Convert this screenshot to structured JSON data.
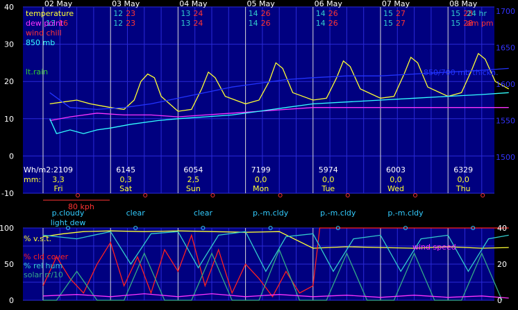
{
  "colors": {
    "background": "#000000",
    "plot_fill": "#000080",
    "grid": "#2a2ad8",
    "day_line": "#d8d8d8",
    "temperature": "#ffff33",
    "dew_point": "#ff33ff",
    "wind_chill": "#ff3333",
    "mb850": "#33ffff",
    "thickness": "#2233ff",
    "rain": "#33cc33",
    "hi_lo_teal": "#33cccc",
    "hi_lo_red": "#ff3333",
    "axis_text": "#ffffff",
    "right_axis_text": "#3333ff",
    "cloud": "#ff2020",
    "vst": "#ffff33",
    "rh": "#33cccc",
    "solar": "#33aa88",
    "wind_speed": "#ff33ff",
    "sky_text": "#33ccff",
    "wind_scale": "#ff3333"
  },
  "days": [
    {
      "date": "02 May",
      "weekday": "Fri",
      "hi_am": "",
      "hi_pm": "",
      "lo_am": "13",
      "lo_pm": "16",
      "solar": "Wh/m2:2109",
      "rain": "3,3",
      "sky": "p.cloudy",
      "sky2": "light dew"
    },
    {
      "date": "03 May",
      "weekday": "Sat",
      "hi_am": "12",
      "hi_pm": "23",
      "lo_am": "12",
      "lo_pm": "23",
      "solar": "6145",
      "rain": "0,3",
      "sky": "clear",
      "sky2": ""
    },
    {
      "date": "04 May",
      "weekday": "Sun",
      "hi_am": "13",
      "hi_pm": "24",
      "lo_am": "13",
      "lo_pm": "24",
      "solar": "6054",
      "rain": "2,5",
      "sky": "clear",
      "sky2": ""
    },
    {
      "date": "05 May",
      "weekday": "Mon",
      "hi_am": "14",
      "hi_pm": "26",
      "lo_am": "14",
      "lo_pm": "26",
      "solar": "7199",
      "rain": "0,0",
      "sky": "p.-m.cldy",
      "sky2": ""
    },
    {
      "date": "06 May",
      "weekday": "Tue",
      "hi_am": "14",
      "hi_pm": "26",
      "lo_am": "14",
      "lo_pm": "26",
      "solar": "5974",
      "rain": "0,0",
      "sky": "p.-m.cldy",
      "sky2": ""
    },
    {
      "date": "07 May",
      "weekday": "Wed",
      "hi_am": "15",
      "hi_pm": "27",
      "lo_am": "15",
      "lo_pm": "27",
      "solar": "6003",
      "rain": "0,0",
      "sky": "p.-m.cldy",
      "sky2": ""
    },
    {
      "date": "08 May",
      "weekday": "Thu",
      "hi_am": "15",
      "hi_pm": "28",
      "lo_am": "15",
      "lo_pm": "28",
      "solar": "6329",
      "rain": "0,0",
      "sky": "",
      "sky2": ""
    }
  ],
  "unit_labels": {
    "hr": "24 hr",
    "ampm": "am pm",
    "mm": "mm:",
    "wind_scale": "80 kph"
  },
  "chart_data": [
    {
      "type": "line",
      "series": [
        {
          "name": "temperature",
          "color": "#ffff33",
          "x": [
            0.1,
            0.3,
            0.5,
            0.7,
            1.0,
            1.2,
            1.35,
            1.45,
            1.55,
            1.65,
            1.75,
            2.0,
            2.2,
            2.35,
            2.45,
            2.55,
            2.7,
            3.0,
            3.2,
            3.35,
            3.45,
            3.55,
            3.7,
            4.0,
            4.2,
            4.35,
            4.45,
            4.55,
            4.7,
            5.0,
            5.2,
            5.35,
            5.45,
            5.55,
            5.7,
            6.0,
            6.2,
            6.35,
            6.45,
            6.55,
            6.7,
            6.9
          ],
          "y": [
            14,
            14.5,
            15,
            14,
            13,
            12.5,
            15,
            20,
            22,
            21,
            16,
            12,
            12.5,
            18,
            22.5,
            21,
            16,
            14,
            15,
            20,
            25,
            23.5,
            17,
            15,
            15.5,
            21,
            25.5,
            24,
            18,
            15.5,
            16,
            22,
            26.5,
            25,
            18.5,
            16,
            17,
            23,
            27.5,
            26,
            20,
            18
          ]
        },
        {
          "name": "dew point",
          "color": "#ff33ff",
          "x": [
            0.1,
            0.4,
            0.8,
            1.2,
            1.6,
            2.0,
            2.4,
            2.8,
            3.2,
            3.6,
            4.0,
            4.5,
            5.0,
            5.5,
            6.0,
            6.5,
            6.9
          ],
          "y": [
            9.5,
            10.5,
            11.5,
            11,
            11,
            10.5,
            11,
            11.5,
            12,
            12.5,
            13,
            13,
            13,
            13,
            13,
            13,
            13
          ]
        },
        {
          "name": "850 mb",
          "color": "#33ffff",
          "x": [
            0.1,
            0.2,
            0.4,
            0.6,
            0.8,
            1.0,
            1.3,
            1.7,
            2.0,
            2.4,
            2.8,
            3.2,
            3.6,
            4.0,
            4.5,
            5.0,
            5.5,
            6.0,
            6.5,
            6.9
          ],
          "y": [
            10,
            6,
            7,
            6,
            7,
            7.5,
            8.5,
            9.5,
            10,
            10.5,
            11,
            12,
            13,
            14,
            14.5,
            15,
            15.5,
            16,
            16.5,
            17
          ]
        },
        {
          "name": "850/700 mb thickn.",
          "color": "#2233ff",
          "x": [
            0.1,
            0.4,
            0.8,
            1.2,
            1.6,
            2.0,
            2.4,
            2.8,
            3.2,
            3.6,
            4.0,
            4.5,
            5.0,
            5.5,
            6.0,
            6.5,
            6.9
          ],
          "y": [
            17,
            13,
            12.5,
            13,
            14,
            15.5,
            17,
            18.5,
            19.5,
            20.5,
            21,
            21.5,
            21.5,
            22,
            22.5,
            23,
            23.5
          ]
        }
      ],
      "ylim": [
        -10,
        40
      ],
      "yticks": [
        -10,
        0,
        10,
        20,
        30,
        40
      ],
      "y2ticks": [
        1500,
        1550,
        1600,
        1650,
        1700
      ],
      "legend": [
        "temperature",
        "dew point",
        "wind chill",
        "850 mb",
        "lt.rain",
        "850/700 mb thickn."
      ],
      "grid": true
    },
    {
      "type": "line",
      "series": [
        {
          "name": "% v.s.t.",
          "color": "#ffff33",
          "x": [
            0.0,
            0.3,
            0.6,
            1.0,
            1.5,
            2.0,
            2.5,
            3.0,
            3.5,
            4.0,
            4.5,
            5.0,
            5.5,
            6.0,
            6.5,
            6.9
          ],
          "y": [
            88,
            92,
            95,
            96,
            95,
            96,
            95,
            94,
            95,
            72,
            74,
            73,
            72,
            74,
            72,
            73
          ]
        },
        {
          "name": "% cld cover",
          "color": "#ff2020",
          "x": [
            0.0,
            0.2,
            0.4,
            0.6,
            0.8,
            1.0,
            1.2,
            1.4,
            1.6,
            1.8,
            2.0,
            2.2,
            2.4,
            2.6,
            2.8,
            3.0,
            3.2,
            3.4,
            3.6,
            3.8,
            4.0,
            4.1,
            4.5,
            5.0,
            5.5,
            6.0,
            6.5,
            6.9
          ],
          "y": [
            20,
            60,
            30,
            10,
            50,
            80,
            20,
            60,
            10,
            70,
            40,
            90,
            20,
            70,
            10,
            50,
            30,
            5,
            40,
            10,
            20,
            100,
            100,
            100,
            100,
            100,
            100,
            100
          ]
        },
        {
          "name": "% rel hum",
          "color": "#33cccc",
          "x": [
            0.0,
            0.5,
            1.0,
            1.3,
            1.6,
            2.0,
            2.3,
            2.6,
            3.0,
            3.3,
            3.6,
            4.0,
            4.3,
            4.6,
            5.0,
            5.3,
            5.6,
            6.0,
            6.3,
            6.6,
            6.9
          ],
          "y": [
            90,
            85,
            95,
            50,
            92,
            95,
            45,
            90,
            95,
            40,
            88,
            92,
            40,
            85,
            90,
            40,
            85,
            90,
            40,
            85,
            90
          ]
        },
        {
          "name": "solar rr/10",
          "color": "#33aa88",
          "x": [
            0.0,
            0.2,
            0.5,
            0.8,
            1.0,
            1.2,
            1.5,
            1.8,
            2.0,
            2.2,
            2.5,
            2.8,
            3.0,
            3.2,
            3.5,
            3.8,
            4.0,
            4.2,
            4.5,
            4.8,
            5.0,
            5.2,
            5.5,
            5.8,
            6.0,
            6.2,
            6.5,
            6.8
          ],
          "y": [
            0,
            0,
            40,
            0,
            0,
            0,
            65,
            0,
            0,
            0,
            65,
            0,
            0,
            0,
            70,
            0,
            0,
            0,
            65,
            0,
            0,
            0,
            65,
            0,
            0,
            0,
            65,
            0
          ]
        },
        {
          "name": "wind speed",
          "color": "#ff33ff",
          "x": [
            0.0,
            0.5,
            1.0,
            1.5,
            2.0,
            2.5,
            3.0,
            3.5,
            4.0,
            4.5,
            5.0,
            5.5,
            6.0,
            6.5,
            6.9
          ],
          "y": [
            6,
            8,
            5,
            9,
            5,
            9,
            5,
            8,
            5,
            7,
            4,
            7,
            4,
            6,
            3
          ]
        }
      ],
      "ylim": [
        0,
        100
      ],
      "yticks": [
        0,
        50,
        100
      ],
      "y2lim": [
        0,
        40
      ],
      "y2ticks": [
        0,
        20,
        40
      ],
      "legend": [
        "% v.s.t.",
        "% cld cover",
        "% rel hum",
        "solar rr/10",
        "wind speed"
      ],
      "grid": true
    }
  ]
}
